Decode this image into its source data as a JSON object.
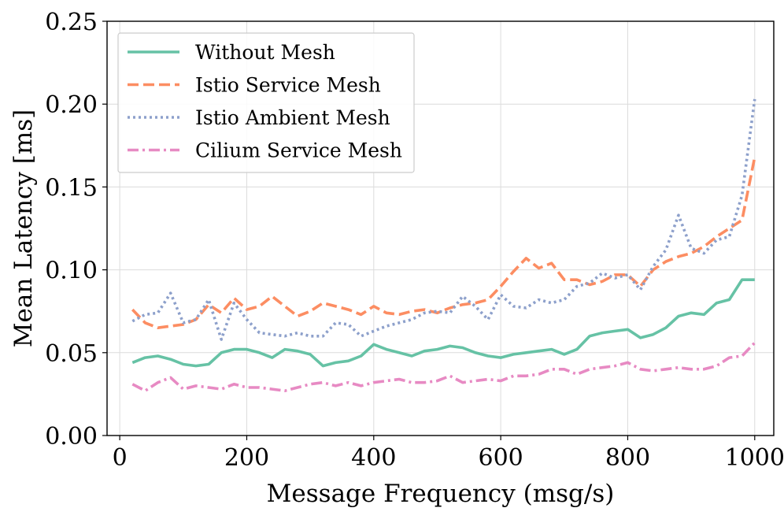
{
  "chart_data": {
    "type": "line",
    "title": "",
    "xlabel": "Message Frequency (msg/s)",
    "ylabel": "Mean Latency [ms]",
    "xlim": [
      -20,
      1030
    ],
    "ylim": [
      0.0,
      0.25
    ],
    "xticks": [
      0,
      200,
      400,
      600,
      800,
      1000
    ],
    "xtick_labels": [
      "0",
      "200",
      "400",
      "600",
      "800",
      "1000"
    ],
    "yticks": [
      0.0,
      0.05,
      0.1,
      0.15,
      0.2,
      0.25
    ],
    "ytick_labels": [
      "0.00",
      "0.05",
      "0.10",
      "0.15",
      "0.20",
      "0.25"
    ],
    "grid": true,
    "legend_position": "top-left",
    "series": [
      {
        "name": "Without Mesh",
        "color": "#66c2a5",
        "dash": "solid",
        "x": [
          20,
          40,
          60,
          80,
          100,
          120,
          140,
          160,
          180,
          200,
          220,
          240,
          260,
          280,
          300,
          320,
          340,
          360,
          380,
          400,
          420,
          440,
          460,
          480,
          500,
          520,
          540,
          560,
          580,
          600,
          620,
          640,
          660,
          680,
          700,
          720,
          740,
          760,
          780,
          800,
          820,
          840,
          860,
          880,
          900,
          920,
          940,
          960,
          980,
          1000
        ],
        "values": [
          0.044,
          0.047,
          0.048,
          0.046,
          0.043,
          0.042,
          0.043,
          0.05,
          0.052,
          0.052,
          0.05,
          0.047,
          0.052,
          0.051,
          0.049,
          0.042,
          0.044,
          0.045,
          0.048,
          0.055,
          0.052,
          0.05,
          0.048,
          0.051,
          0.052,
          0.054,
          0.053,
          0.05,
          0.048,
          0.047,
          0.049,
          0.05,
          0.051,
          0.052,
          0.049,
          0.052,
          0.06,
          0.062,
          0.063,
          0.064,
          0.059,
          0.061,
          0.065,
          0.072,
          0.074,
          0.073,
          0.08,
          0.082,
          0.094,
          0.094
        ]
      },
      {
        "name": "Istio Service Mesh",
        "color": "#fc8d62",
        "dash": "dashed",
        "x": [
          20,
          40,
          60,
          80,
          100,
          120,
          140,
          160,
          180,
          200,
          220,
          240,
          260,
          280,
          300,
          320,
          340,
          360,
          380,
          400,
          420,
          440,
          460,
          480,
          500,
          520,
          540,
          560,
          580,
          600,
          620,
          640,
          660,
          680,
          700,
          720,
          740,
          760,
          780,
          800,
          820,
          840,
          860,
          880,
          900,
          920,
          940,
          960,
          980,
          1000
        ],
        "values": [
          0.076,
          0.068,
          0.065,
          0.066,
          0.067,
          0.07,
          0.079,
          0.074,
          0.083,
          0.076,
          0.078,
          0.084,
          0.078,
          0.072,
          0.075,
          0.08,
          0.078,
          0.076,
          0.073,
          0.078,
          0.074,
          0.073,
          0.075,
          0.076,
          0.074,
          0.077,
          0.079,
          0.08,
          0.082,
          0.09,
          0.099,
          0.107,
          0.101,
          0.104,
          0.094,
          0.094,
          0.091,
          0.093,
          0.097,
          0.097,
          0.09,
          0.1,
          0.105,
          0.108,
          0.11,
          0.114,
          0.12,
          0.125,
          0.13,
          0.168
        ]
      },
      {
        "name": "Istio Ambient Mesh",
        "color": "#8da0cb",
        "dash": "dotted",
        "x": [
          20,
          40,
          60,
          80,
          100,
          120,
          140,
          160,
          180,
          200,
          220,
          240,
          260,
          280,
          300,
          320,
          340,
          360,
          380,
          400,
          420,
          440,
          460,
          480,
          500,
          520,
          540,
          560,
          580,
          600,
          620,
          640,
          660,
          680,
          700,
          720,
          740,
          760,
          780,
          800,
          820,
          840,
          860,
          880,
          900,
          920,
          940,
          960,
          980,
          1000
        ],
        "values": [
          0.069,
          0.073,
          0.074,
          0.086,
          0.068,
          0.07,
          0.082,
          0.058,
          0.08,
          0.07,
          0.062,
          0.061,
          0.06,
          0.062,
          0.06,
          0.06,
          0.068,
          0.067,
          0.06,
          0.063,
          0.066,
          0.068,
          0.07,
          0.074,
          0.075,
          0.074,
          0.084,
          0.078,
          0.07,
          0.085,
          0.078,
          0.077,
          0.082,
          0.08,
          0.082,
          0.09,
          0.092,
          0.098,
          0.095,
          0.097,
          0.088,
          0.102,
          0.112,
          0.133,
          0.113,
          0.11,
          0.118,
          0.12,
          0.145,
          0.203
        ]
      },
      {
        "name": "Cilium Service Mesh",
        "color": "#e78ac3",
        "dash": "dashdot",
        "x": [
          20,
          40,
          60,
          80,
          100,
          120,
          140,
          160,
          180,
          200,
          220,
          240,
          260,
          280,
          300,
          320,
          340,
          360,
          380,
          400,
          420,
          440,
          460,
          480,
          500,
          520,
          540,
          560,
          580,
          600,
          620,
          640,
          660,
          680,
          700,
          720,
          740,
          760,
          780,
          800,
          820,
          840,
          860,
          880,
          900,
          920,
          940,
          960,
          980,
          1000
        ],
        "values": [
          0.031,
          0.027,
          0.032,
          0.035,
          0.028,
          0.03,
          0.029,
          0.028,
          0.031,
          0.029,
          0.029,
          0.028,
          0.027,
          0.029,
          0.031,
          0.032,
          0.03,
          0.032,
          0.03,
          0.032,
          0.033,
          0.034,
          0.032,
          0.032,
          0.033,
          0.036,
          0.032,
          0.033,
          0.034,
          0.033,
          0.036,
          0.036,
          0.037,
          0.04,
          0.04,
          0.037,
          0.04,
          0.041,
          0.042,
          0.044,
          0.04,
          0.039,
          0.04,
          0.041,
          0.04,
          0.04,
          0.042,
          0.047,
          0.048,
          0.056
        ]
      }
    ]
  }
}
